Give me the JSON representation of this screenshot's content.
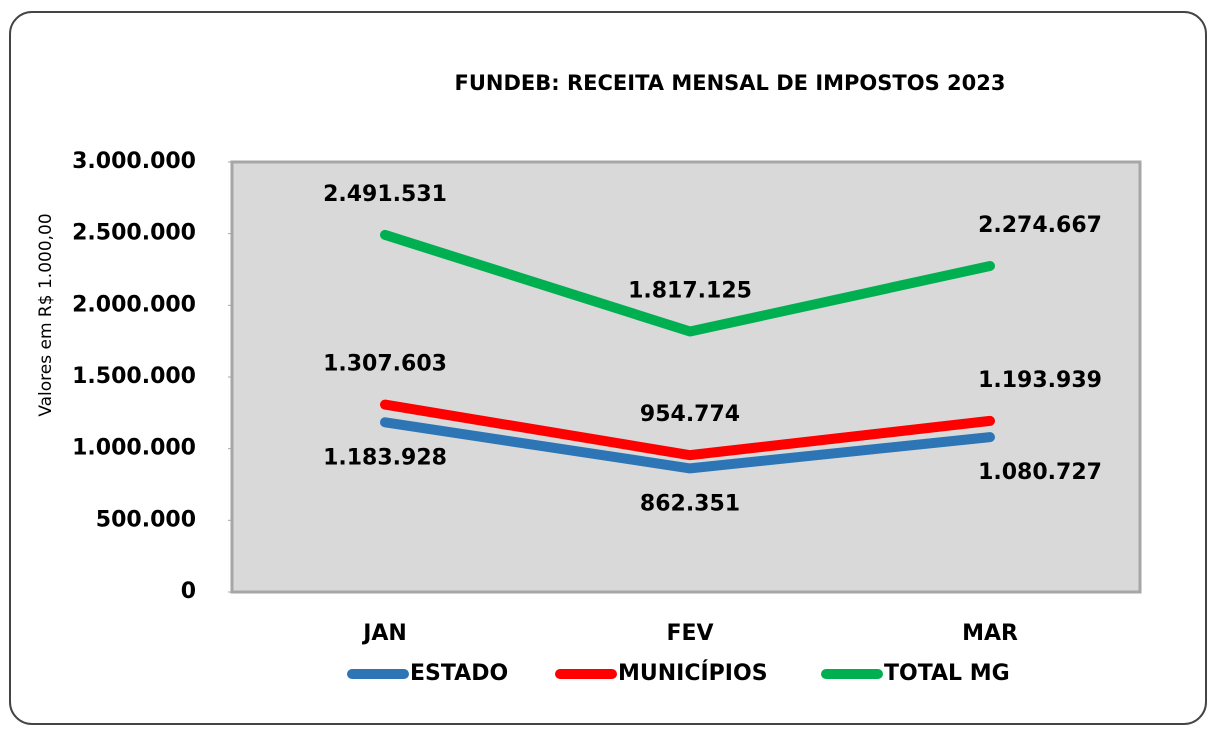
{
  "chart_data": {
    "type": "line",
    "title": "FUNDEB: RECEITA MENSAL DE IMPOSTOS 2023",
    "y_label": "Valores em R$ 1.000,00",
    "categories": [
      "JAN",
      "FEV",
      "MAR"
    ],
    "series": [
      {
        "name": "ESTADO",
        "color": "#2e75b6",
        "values": [
          1183928,
          862351,
          1080727
        ],
        "value_labels": [
          "1.183.928",
          "862.351",
          "1.080.727"
        ]
      },
      {
        "name": "MUNICÍPIOS",
        "color": "#ff0000",
        "values": [
          1307603,
          954774,
          1193939
        ],
        "value_labels": [
          "1.307.603",
          "954.774",
          "1.193.939"
        ]
      },
      {
        "name": "TOTAL MG",
        "color": "#00b050",
        "values": [
          2491531,
          1817125,
          2274667
        ],
        "value_labels": [
          "2.491.531",
          "1.817.125",
          "2.274.667"
        ]
      }
    ],
    "ylim": [
      0,
      3000000
    ],
    "yticks": [
      0,
      {
        "value": 500000,
        "label": "500.000"
      },
      {
        "value": 1000000,
        "label": "1.000.000"
      },
      {
        "value": 1500000,
        "label": "1.500.000"
      },
      {
        "value": 2000000,
        "label": "2.000.000"
      },
      {
        "value": 2500000,
        "label": "2.500.000"
      },
      {
        "value": 3000000,
        "label": "3.000.000"
      }
    ],
    "grid": false,
    "legend": "bottom"
  }
}
